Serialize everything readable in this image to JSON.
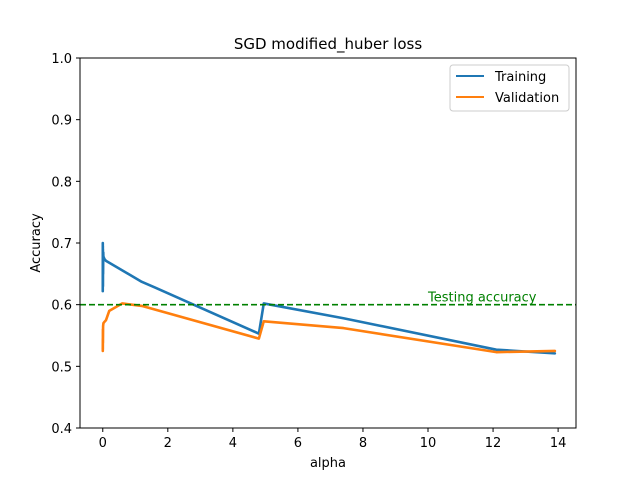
{
  "chart_data": {
    "type": "line",
    "title": "SGD modified_huber loss",
    "xlabel": "alpha",
    "ylabel": "Accuracy",
    "xlim": [
      -0.7,
      14.55
    ],
    "ylim": [
      0.4,
      1.0
    ],
    "xticks": [
      0,
      2,
      4,
      6,
      8,
      10,
      12,
      14
    ],
    "yticks": [
      0.4,
      0.5,
      0.6,
      0.7,
      0.8,
      0.9,
      1.0
    ],
    "grid": false,
    "legend_position": "top-right",
    "series": [
      {
        "name": "Training",
        "color": "#1f77b4",
        "x": [
          0.0,
          0.001,
          0.002,
          0.003,
          0.004,
          0.005,
          0.006,
          0.008,
          0.01,
          0.015,
          0.02,
          0.03,
          0.05,
          0.1,
          0.2,
          1.2,
          1.6,
          4.8,
          4.95,
          7.4,
          12.1,
          13.9
        ],
        "y": [
          0.622,
          0.7,
          0.63,
          0.695,
          0.64,
          0.69,
          0.63,
          0.685,
          0.65,
          0.685,
          0.675,
          0.677,
          0.674,
          0.671,
          0.668,
          0.637,
          0.628,
          0.553,
          0.602,
          0.578,
          0.527,
          0.521
        ]
      },
      {
        "name": "Validation",
        "color": "#ff7f0e",
        "x": [
          0.0,
          0.001,
          0.002,
          0.003,
          0.004,
          0.006,
          0.01,
          0.02,
          0.05,
          0.1,
          0.2,
          0.6,
          1.2,
          4.8,
          4.95,
          7.4,
          12.1,
          13.9
        ],
        "y": [
          0.53,
          0.525,
          0.545,
          0.528,
          0.56,
          0.538,
          0.565,
          0.57,
          0.572,
          0.575,
          0.59,
          0.602,
          0.598,
          0.545,
          0.573,
          0.562,
          0.523,
          0.525
        ]
      }
    ],
    "reference_line": {
      "y": 0.6,
      "color": "#008000",
      "style": "dashed",
      "label": "Testing accuracy",
      "label_x": 10.0
    }
  }
}
